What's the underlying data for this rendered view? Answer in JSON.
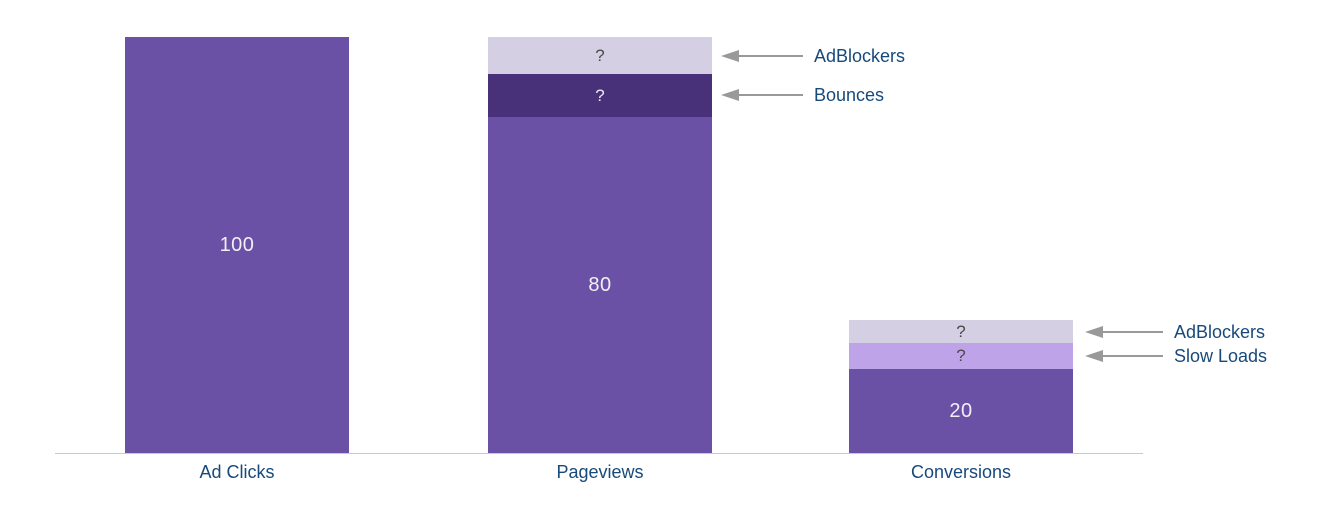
{
  "chart_data": {
    "type": "bar",
    "subtype": "stacked_funnel",
    "title": "",
    "xlabel": "",
    "ylabel": "",
    "ylim": [
      0,
      100
    ],
    "grid": false,
    "baseline_axis": true,
    "legend": "none (arrow annotations instead)",
    "categories": [
      "Ad Clicks",
      "Pageviews",
      "Conversions"
    ],
    "segment_order_note": "segments listed top-to-bottom as drawn",
    "bars": [
      {
        "category": "Ad Clicks",
        "segments": [
          {
            "name": "Ad Clicks",
            "value": 100,
            "label": "100",
            "color": "#6a51a6"
          }
        ]
      },
      {
        "category": "Pageviews",
        "segments": [
          {
            "name": "AdBlockers",
            "value": null,
            "approx_value": 9,
            "label": "?",
            "color": "#d4cfe3"
          },
          {
            "name": "Bounces",
            "value": null,
            "approx_value": 10,
            "label": "?",
            "color": "#483179"
          },
          {
            "name": "Pageviews",
            "value": 80,
            "label": "80",
            "color": "#6a51a6"
          }
        ]
      },
      {
        "category": "Conversions",
        "segments": [
          {
            "name": "AdBlockers",
            "value": null,
            "approx_value": 6,
            "label": "?",
            "color": "#d4cfe3"
          },
          {
            "name": "Slow Loads",
            "value": null,
            "approx_value": 6,
            "label": "?",
            "color": "#bfa3e8"
          },
          {
            "name": "Conversions",
            "value": 20,
            "label": "20",
            "color": "#6a51a6"
          }
        ]
      }
    ],
    "annotations": [
      {
        "text": "AdBlockers",
        "bar": "Pageviews",
        "segment": "AdBlockers"
      },
      {
        "text": "Bounces",
        "bar": "Pageviews",
        "segment": "Bounces"
      },
      {
        "text": "AdBlockers",
        "bar": "Conversions",
        "segment": "AdBlockers"
      },
      {
        "text": "Slow Loads",
        "bar": "Conversions",
        "segment": "Slow Loads"
      }
    ],
    "colors": {
      "primary_purple": "#6a51a6",
      "dark_purple": "#483179",
      "lavender": "#d4cfe3",
      "light_purple": "#bfa3e8",
      "label_navy": "#17497b",
      "value_text": "#f2eff7",
      "question_dark": "#4a4a4a",
      "arrow_gray": "#999999",
      "axis_gray": "#c9c9c9"
    }
  }
}
